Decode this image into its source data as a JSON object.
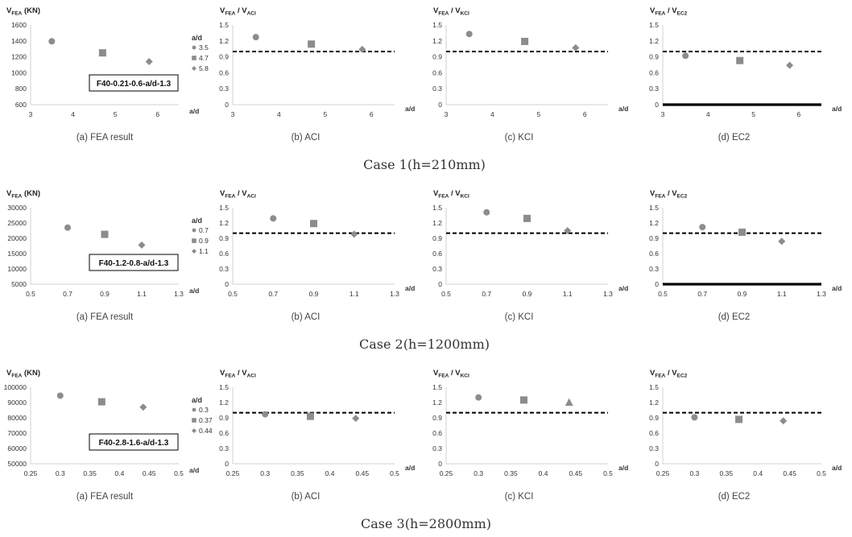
{
  "figure": {
    "marker_color": "#8c8c8c",
    "axis_color": "#d0d0d0",
    "ref_line_color": "#000000",
    "cases": [
      {
        "title": "Case  1(h=210mm)",
        "panels": [
          {
            "type": "scatter",
            "kind": "fea",
            "ylabel": "V",
            "ylabel_sub": "FEA",
            "ylabel_unit": " (KN)",
            "caption": "(a)  FEA result",
            "xlabel": "a/d",
            "xlim": [
              3,
              6.5
            ],
            "xticks": [
              "3",
              "4",
              "5",
              "6"
            ],
            "xtick_values": [
              3,
              4,
              5,
              6
            ],
            "ylim": [
              600,
              1600
            ],
            "yticks": [
              "600",
              "800",
              "1000",
              "1200",
              "1400",
              "1600"
            ],
            "yticks_values": [
              600,
              800,
              1000,
              1200,
              1400,
              1600
            ],
            "legend_title": "a/d",
            "specimen": "F40-0.21-0.6-a/d-1.3",
            "points": [
              {
                "x": 3.5,
                "y": 1395,
                "marker": "circle",
                "label": "3.5"
              },
              {
                "x": 4.7,
                "y": 1250,
                "marker": "square",
                "label": "4.7"
              },
              {
                "x": 5.8,
                "y": 1140,
                "marker": "diamond",
                "label": "5.8"
              }
            ]
          },
          {
            "type": "scatter",
            "kind": "ratio",
            "ylabel": "V",
            "ylabel_sub": "FEA",
            "ylabel_mid": " / V",
            "ylabel_sub2": "ACI",
            "caption": "(b)  ACI",
            "xlabel": "a/d",
            "xlim": [
              3,
              6.5
            ],
            "xticks": [
              "3",
              "4",
              "5",
              "6"
            ],
            "xtick_values": [
              3,
              4,
              5,
              6
            ],
            "ylim": [
              0,
              1.5
            ],
            "yticks": [
              "0",
              "0.3",
              "0.6",
              "0.9",
              "1.2",
              "1.5"
            ],
            "yticks_values": [
              0,
              0.3,
              0.6,
              0.9,
              1.2,
              1.5
            ],
            "ref": 1.0,
            "bold_axis": false,
            "points": [
              {
                "x": 3.5,
                "y": 1.27,
                "marker": "circle"
              },
              {
                "x": 4.7,
                "y": 1.14,
                "marker": "square"
              },
              {
                "x": 5.8,
                "y": 1.04,
                "marker": "diamond"
              }
            ]
          },
          {
            "type": "scatter",
            "kind": "ratio",
            "ylabel": "V",
            "ylabel_sub": "FEA",
            "ylabel_mid": " / V",
            "ylabel_sub2": "KCI",
            "caption": "(c)  KCI",
            "xlabel": "a/d",
            "xlim": [
              3,
              6.5
            ],
            "xticks": [
              "3",
              "4",
              "5",
              "6"
            ],
            "xtick_values": [
              3,
              4,
              5,
              6
            ],
            "ylim": [
              0,
              1.5
            ],
            "yticks": [
              "0",
              "0.3",
              "0.6",
              "0.9",
              "1.2",
              "1.5"
            ],
            "yticks_values": [
              0,
              0.3,
              0.6,
              0.9,
              1.2,
              1.5
            ],
            "ref": 1.0,
            "bold_axis": false,
            "points": [
              {
                "x": 3.5,
                "y": 1.33,
                "marker": "circle"
              },
              {
                "x": 4.7,
                "y": 1.19,
                "marker": "square"
              },
              {
                "x": 5.8,
                "y": 1.07,
                "marker": "diamond"
              }
            ]
          },
          {
            "type": "scatter",
            "kind": "ratio",
            "ylabel": "V",
            "ylabel_sub": "FEA",
            "ylabel_mid": " / V",
            "ylabel_sub2": "EC2",
            "caption": "(d)  EC2",
            "xlabel": "a/d",
            "xlim": [
              3,
              6.5
            ],
            "xticks": [
              "3",
              "4",
              "5",
              "6"
            ],
            "xtick_values": [
              3,
              4,
              5,
              6
            ],
            "ylim": [
              0,
              1.5
            ],
            "yticks": [
              "0",
              "0.3",
              "0.6",
              "0.9",
              "1.2",
              "1.5"
            ],
            "yticks_values": [
              0,
              0.3,
              0.6,
              0.9,
              1.2,
              1.5
            ],
            "ref": 1.0,
            "bold_axis": true,
            "points": [
              {
                "x": 3.5,
                "y": 0.92,
                "marker": "circle"
              },
              {
                "x": 4.7,
                "y": 0.83,
                "marker": "square"
              },
              {
                "x": 5.8,
                "y": 0.74,
                "marker": "diamond"
              }
            ]
          }
        ]
      },
      {
        "title": "Case  2(h=1200mm)",
        "panels": [
          {
            "type": "scatter",
            "kind": "fea",
            "ylabel": "V",
            "ylabel_sub": "FEA",
            "ylabel_unit": " (KN)",
            "caption": "(a)  FEA result",
            "xlabel": "a/d",
            "xlim": [
              0.5,
              1.3
            ],
            "xticks": [
              "0.5",
              "0.7",
              "0.9",
              "1.1",
              "1.3"
            ],
            "xtick_values": [
              0.5,
              0.7,
              0.9,
              1.1,
              1.3
            ],
            "ylim": [
              5000,
              30000
            ],
            "yticks": [
              "5000",
              "10000",
              "15000",
              "20000",
              "25000",
              "30000"
            ],
            "yticks_values": [
              5000,
              10000,
              15000,
              20000,
              25000,
              30000
            ],
            "legend_title": "a/d",
            "specimen": "F40-1.2-0.8-a/d-1.3",
            "points": [
              {
                "x": 0.7,
                "y": 23500,
                "marker": "circle",
                "label": "0.7"
              },
              {
                "x": 0.9,
                "y": 21300,
                "marker": "square",
                "label": "0.9"
              },
              {
                "x": 1.1,
                "y": 17800,
                "marker": "diamond",
                "label": "1.1"
              }
            ]
          },
          {
            "type": "scatter",
            "kind": "ratio",
            "ylabel": "V",
            "ylabel_sub": "FEA",
            "ylabel_mid": " / V",
            "ylabel_sub2": "ACI",
            "caption": "(b)  ACI",
            "xlabel": "a/d",
            "xlim": [
              0.5,
              1.3
            ],
            "xticks": [
              "0.5",
              "0.7",
              "0.9",
              "1.1",
              "1.3"
            ],
            "xtick_values": [
              0.5,
              0.7,
              0.9,
              1.1,
              1.3
            ],
            "ylim": [
              0,
              1.5
            ],
            "yticks": [
              "0",
              "0.3",
              "0.6",
              "0.9",
              "1.2",
              "1.5"
            ],
            "yticks_values": [
              0,
              0.3,
              0.6,
              0.9,
              1.2,
              1.5
            ],
            "ref": 1.0,
            "bold_axis": false,
            "points": [
              {
                "x": 0.7,
                "y": 1.29,
                "marker": "circle"
              },
              {
                "x": 0.9,
                "y": 1.19,
                "marker": "square"
              },
              {
                "x": 1.1,
                "y": 0.98,
                "marker": "diamond"
              }
            ]
          },
          {
            "type": "scatter",
            "kind": "ratio",
            "ylabel": "V",
            "ylabel_sub": "FEA",
            "ylabel_mid": " / V",
            "ylabel_sub2": "KCI",
            "caption": "(c)  KCI",
            "xlabel": "a/d",
            "xlim": [
              0.5,
              1.3
            ],
            "xticks": [
              "0.5",
              "0.7",
              "0.9",
              "1.1",
              "1.3"
            ],
            "xtick_values": [
              0.5,
              0.7,
              0.9,
              1.1,
              1.3
            ],
            "ylim": [
              0,
              1.5
            ],
            "yticks": [
              "0",
              "0.3",
              "0.6",
              "0.9",
              "1.2",
              "1.5"
            ],
            "yticks_values": [
              0,
              0.3,
              0.6,
              0.9,
              1.2,
              1.5
            ],
            "ref": 1.0,
            "bold_axis": false,
            "points": [
              {
                "x": 0.7,
                "y": 1.41,
                "marker": "circle"
              },
              {
                "x": 0.9,
                "y": 1.29,
                "marker": "square"
              },
              {
                "x": 1.1,
                "y": 1.05,
                "marker": "diamond"
              }
            ]
          },
          {
            "type": "scatter",
            "kind": "ratio",
            "ylabel": "V",
            "ylabel_sub": "FEA",
            "ylabel_mid": " / V",
            "ylabel_sub2": "EC2",
            "caption": "(d)  EC2",
            "xlabel": "a/d",
            "xlim": [
              0.5,
              1.3
            ],
            "xticks": [
              "0.5",
              "0.7",
              "0.9",
              "1.1",
              "1.3"
            ],
            "xtick_values": [
              0.5,
              0.7,
              0.9,
              1.1,
              1.3
            ],
            "ylim": [
              0,
              1.5
            ],
            "yticks": [
              "0",
              "0.3",
              "0.6",
              "0.9",
              "1.2",
              "1.5"
            ],
            "yticks_values": [
              0,
              0.3,
              0.6,
              0.9,
              1.2,
              1.5
            ],
            "ref": 1.0,
            "bold_axis": true,
            "points": [
              {
                "x": 0.7,
                "y": 1.12,
                "marker": "circle"
              },
              {
                "x": 0.9,
                "y": 1.02,
                "marker": "square"
              },
              {
                "x": 1.1,
                "y": 0.84,
                "marker": "diamond"
              }
            ]
          }
        ]
      },
      {
        "title": "Case  3(h=2800mm)",
        "panels": [
          {
            "type": "scatter",
            "kind": "fea",
            "ylabel": "V",
            "ylabel_sub": "FEA",
            "ylabel_unit": " (KN)",
            "caption": "(a)  FEA result",
            "xlabel": "a/d",
            "xlim": [
              0.25,
              0.5
            ],
            "xticks": [
              "0.25",
              "0.3",
              "0.35",
              "0.4",
              "0.45",
              "0.5"
            ],
            "xtick_values": [
              0.25,
              0.3,
              0.35,
              0.4,
              0.45,
              0.5
            ],
            "ylim": [
              50000,
              100000
            ],
            "yticks": [
              "50000",
              "60000",
              "70000",
              "80000",
              "90000",
              "100000"
            ],
            "yticks_values": [
              50000,
              60000,
              70000,
              80000,
              90000,
              100000
            ],
            "legend_title": "a/d",
            "specimen": "F40-2.8-1.6-a/d-1.3",
            "points": [
              {
                "x": 0.3,
                "y": 94500,
                "marker": "circle",
                "label": "0.3"
              },
              {
                "x": 0.37,
                "y": 90500,
                "marker": "square",
                "label": "0.37"
              },
              {
                "x": 0.44,
                "y": 87000,
                "marker": "diamond",
                "label": "0.44"
              }
            ]
          },
          {
            "type": "scatter",
            "kind": "ratio",
            "ylabel": "V",
            "ylabel_sub": "FEA",
            "ylabel_mid": " / V",
            "ylabel_sub2": "ACI",
            "caption": "(b)  ACI",
            "xlabel": "a/d",
            "xlim": [
              0.25,
              0.5
            ],
            "xticks": [
              "0.25",
              "0.3",
              "0.35",
              "0.4",
              "0.45",
              "0.5"
            ],
            "xtick_values": [
              0.25,
              0.3,
              0.35,
              0.4,
              0.45,
              0.5
            ],
            "ylim": [
              0,
              1.5
            ],
            "yticks": [
              "0",
              "0.3",
              "0.6",
              "0.9",
              "1.2",
              "1.5"
            ],
            "yticks_values": [
              0,
              0.3,
              0.6,
              0.9,
              1.2,
              1.5
            ],
            "ref": 1.0,
            "bold_axis": false,
            "points": [
              {
                "x": 0.3,
                "y": 0.97,
                "marker": "circle"
              },
              {
                "x": 0.37,
                "y": 0.93,
                "marker": "square"
              },
              {
                "x": 0.44,
                "y": 0.89,
                "marker": "diamond"
              }
            ]
          },
          {
            "type": "scatter",
            "kind": "ratio",
            "ylabel": "V",
            "ylabel_sub": "FEA",
            "ylabel_mid": " / V",
            "ylabel_sub2": "KCI",
            "caption": "(c)  KCI",
            "xlabel": "a/d",
            "xlim": [
              0.25,
              0.5
            ],
            "xticks": [
              "0.25",
              "0.3",
              "0.35",
              "0.4",
              "0.45",
              "0.5"
            ],
            "xtick_values": [
              0.25,
              0.3,
              0.35,
              0.4,
              0.45,
              0.5
            ],
            "ylim": [
              0,
              1.5
            ],
            "yticks": [
              "0",
              "0.3",
              "0.6",
              "0.9",
              "1.2",
              "1.5"
            ],
            "yticks_values": [
              0,
              0.3,
              0.6,
              0.9,
              1.2,
              1.5
            ],
            "ref": 1.0,
            "bold_axis": false,
            "points": [
              {
                "x": 0.3,
                "y": 1.3,
                "marker": "circle"
              },
              {
                "x": 0.37,
                "y": 1.25,
                "marker": "square"
              },
              {
                "x": 0.44,
                "y": 1.2,
                "marker": "triangle"
              }
            ]
          },
          {
            "type": "scatter",
            "kind": "ratio",
            "ylabel": "V",
            "ylabel_sub": "FEA",
            "ylabel_mid": " / V",
            "ylabel_sub2": "EC2",
            "caption": "(d)  EC2",
            "xlabel": "a/d",
            "xlim": [
              0.25,
              0.5
            ],
            "xticks": [
              "0.25",
              "0.3",
              "0.35",
              "0.4",
              "0.45",
              "0.5"
            ],
            "xtick_values": [
              0.25,
              0.3,
              0.35,
              0.4,
              0.45,
              0.5
            ],
            "ylim": [
              0,
              1.5
            ],
            "yticks": [
              "0",
              "0.3",
              "0.6",
              "0.9",
              "1.2",
              "1.5"
            ],
            "yticks_values": [
              0,
              0.3,
              0.6,
              0.9,
              1.2,
              1.5
            ],
            "ref": 1.0,
            "bold_axis": false,
            "points": [
              {
                "x": 0.3,
                "y": 0.91,
                "marker": "circle"
              },
              {
                "x": 0.37,
                "y": 0.87,
                "marker": "square"
              },
              {
                "x": 0.44,
                "y": 0.84,
                "marker": "diamond"
              }
            ]
          }
        ]
      }
    ]
  }
}
